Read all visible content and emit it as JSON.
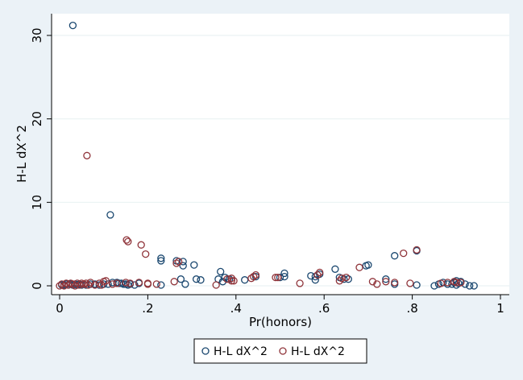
{
  "chart_data": {
    "type": "scatter",
    "title": "",
    "xlabel": "Pr(honors)",
    "ylabel": "H-L dX^2",
    "xlim": [
      0,
      1
    ],
    "ylim": [
      0,
      32
    ],
    "xticks": [
      0,
      0.2,
      0.4,
      0.6,
      0.8,
      1
    ],
    "xtick_labels": [
      "0",
      ".2",
      ".4",
      ".6",
      ".8",
      "1"
    ],
    "yticks": [
      0,
      10,
      20,
      30
    ],
    "ytick_labels": [
      "0",
      "10",
      "20",
      "30"
    ],
    "grid": "horizontal",
    "legend_position": "bottom",
    "series": [
      {
        "name": "H-L dX^2",
        "color": "#1a476f",
        "marker": "hollow-circle",
        "points": [
          [
            0.03,
            31.2
          ],
          [
            0.115,
            8.5
          ],
          [
            0.005,
            0.1
          ],
          [
            0.01,
            0.1
          ],
          [
            0.015,
            0.2
          ],
          [
            0.02,
            0.1
          ],
          [
            0.025,
            0.2
          ],
          [
            0.03,
            0.1
          ],
          [
            0.035,
            0.2
          ],
          [
            0.04,
            0.1
          ],
          [
            0.045,
            0.2
          ],
          [
            0.05,
            0.1
          ],
          [
            0.06,
            0.1
          ],
          [
            0.07,
            0.2
          ],
          [
            0.08,
            0.2
          ],
          [
            0.09,
            0.1
          ],
          [
            0.1,
            0.2
          ],
          [
            0.11,
            0.2
          ],
          [
            0.12,
            0.4
          ],
          [
            0.13,
            0.4
          ],
          [
            0.135,
            0.3
          ],
          [
            0.14,
            0.3
          ],
          [
            0.145,
            0.2
          ],
          [
            0.15,
            0.2
          ],
          [
            0.155,
            0.1
          ],
          [
            0.16,
            0.2
          ],
          [
            0.17,
            0.1
          ],
          [
            0.18,
            0.3
          ],
          [
            0.23,
            3.3
          ],
          [
            0.23,
            3.0
          ],
          [
            0.23,
            0.1
          ],
          [
            0.265,
            3.0
          ],
          [
            0.275,
            0.8
          ],
          [
            0.28,
            2.4
          ],
          [
            0.28,
            2.9
          ],
          [
            0.285,
            0.2
          ],
          [
            0.305,
            2.5
          ],
          [
            0.31,
            0.8
          ],
          [
            0.32,
            0.7
          ],
          [
            0.36,
            0.8
          ],
          [
            0.365,
            1.7
          ],
          [
            0.37,
            0.5
          ],
          [
            0.375,
            1.0
          ],
          [
            0.385,
            0.8
          ],
          [
            0.42,
            0.7
          ],
          [
            0.445,
            1.1
          ],
          [
            0.5,
            1.0
          ],
          [
            0.51,
            1.1
          ],
          [
            0.51,
            1.5
          ],
          [
            0.57,
            1.2
          ],
          [
            0.58,
            0.7
          ],
          [
            0.58,
            1.1
          ],
          [
            0.59,
            1.4
          ],
          [
            0.625,
            2.0
          ],
          [
            0.635,
            1.0
          ],
          [
            0.645,
            0.8
          ],
          [
            0.655,
            0.8
          ],
          [
            0.695,
            2.4
          ],
          [
            0.7,
            2.5
          ],
          [
            0.74,
            0.8
          ],
          [
            0.76,
            3.6
          ],
          [
            0.76,
            0.2
          ],
          [
            0.81,
            0.1
          ],
          [
            0.81,
            4.2
          ],
          [
            0.85,
            0.0
          ],
          [
            0.86,
            0.2
          ],
          [
            0.87,
            0.4
          ],
          [
            0.88,
            0.2
          ],
          [
            0.89,
            0.2
          ],
          [
            0.895,
            0.4
          ],
          [
            0.9,
            0.1
          ],
          [
            0.9,
            0.6
          ],
          [
            0.905,
            0.3
          ],
          [
            0.91,
            0.5
          ],
          [
            0.92,
            0.2
          ],
          [
            0.93,
            0.0
          ],
          [
            0.94,
            0.0
          ]
        ]
      },
      {
        "name": "H-L dX^2",
        "color": "#90353b",
        "marker": "hollow-circle",
        "points": [
          [
            0.062,
            15.6
          ],
          [
            0.152,
            5.5
          ],
          [
            0.155,
            5.3
          ],
          [
            0.185,
            4.9
          ],
          [
            0.195,
            3.8
          ],
          [
            0.0,
            0.0
          ],
          [
            0.005,
            0.2
          ],
          [
            0.01,
            0.0
          ],
          [
            0.015,
            0.3
          ],
          [
            0.02,
            0.1
          ],
          [
            0.025,
            0.3
          ],
          [
            0.03,
            0.2
          ],
          [
            0.035,
            0.0
          ],
          [
            0.04,
            0.3
          ],
          [
            0.045,
            0.1
          ],
          [
            0.05,
            0.3
          ],
          [
            0.055,
            0.2
          ],
          [
            0.06,
            0.3
          ],
          [
            0.065,
            0.1
          ],
          [
            0.07,
            0.4
          ],
          [
            0.08,
            0.1
          ],
          [
            0.09,
            0.3
          ],
          [
            0.095,
            0.1
          ],
          [
            0.1,
            0.5
          ],
          [
            0.105,
            0.6
          ],
          [
            0.12,
            0.2
          ],
          [
            0.13,
            0.3
          ],
          [
            0.15,
            0.4
          ],
          [
            0.16,
            0.3
          ],
          [
            0.18,
            0.4
          ],
          [
            0.2,
            0.2
          ],
          [
            0.2,
            0.3
          ],
          [
            0.22,
            0.2
          ],
          [
            0.26,
            0.5
          ],
          [
            0.265,
            2.7
          ],
          [
            0.27,
            2.9
          ],
          [
            0.355,
            0.1
          ],
          [
            0.38,
            0.8
          ],
          [
            0.39,
            0.6
          ],
          [
            0.39,
            0.9
          ],
          [
            0.395,
            0.6
          ],
          [
            0.435,
            0.9
          ],
          [
            0.44,
            1.1
          ],
          [
            0.445,
            1.3
          ],
          [
            0.49,
            1.0
          ],
          [
            0.495,
            1.0
          ],
          [
            0.545,
            0.3
          ],
          [
            0.585,
            1.3
          ],
          [
            0.59,
            1.6
          ],
          [
            0.635,
            0.6
          ],
          [
            0.64,
            0.9
          ],
          [
            0.65,
            1.0
          ],
          [
            0.68,
            2.2
          ],
          [
            0.71,
            0.5
          ],
          [
            0.72,
            0.2
          ],
          [
            0.74,
            0.5
          ],
          [
            0.76,
            0.4
          ],
          [
            0.78,
            3.9
          ],
          [
            0.795,
            0.3
          ],
          [
            0.81,
            4.3
          ],
          [
            0.865,
            0.3
          ],
          [
            0.88,
            0.4
          ],
          [
            0.895,
            0.5
          ],
          [
            0.9,
            0.4
          ],
          [
            0.91,
            0.4
          ]
        ]
      }
    ]
  }
}
